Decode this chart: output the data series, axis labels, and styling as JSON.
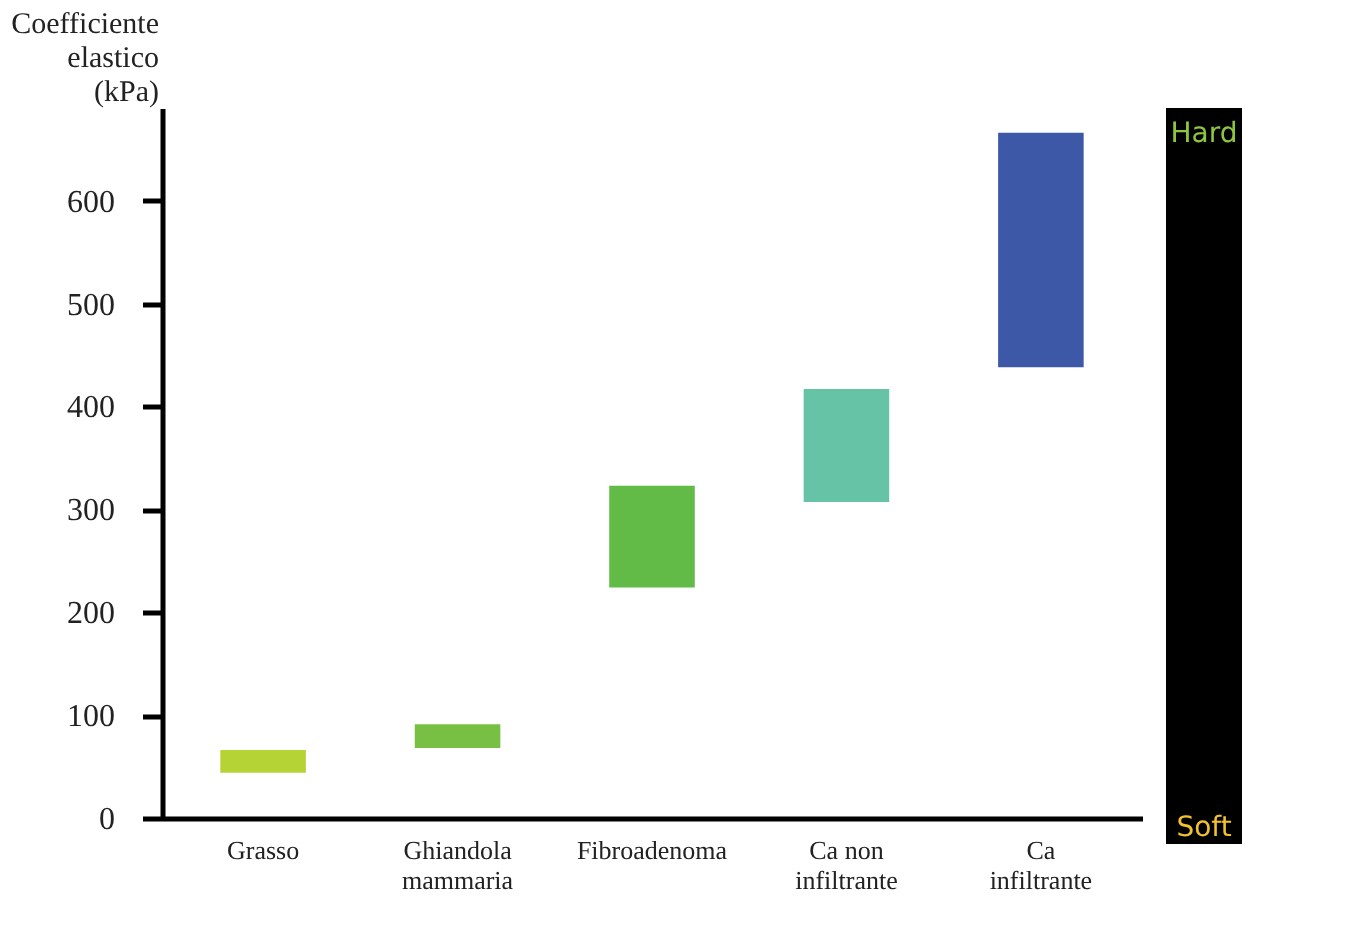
{
  "chart_data": {
    "type": "bar",
    "ylabel": "Coefficiente elastico (kPa)",
    "categories": [
      "Grasso",
      "Ghiandola mammaria",
      "Fibroadenoma",
      "Ca non infiltrante",
      "Ca infiltrante"
    ],
    "base": [
      44,
      68,
      224,
      307,
      438
    ],
    "values": [
      22,
      23,
      99,
      110,
      228
    ],
    "colors": [
      "#b5d334",
      "#78c043",
      "#63bb47",
      "#66c3a6",
      "#3d58a6"
    ],
    "ylim": [
      0,
      690
    ],
    "yticks": [
      0,
      100,
      200,
      300,
      400,
      500,
      600
    ],
    "annotations": [
      "Hard",
      "Soft"
    ]
  }
}
